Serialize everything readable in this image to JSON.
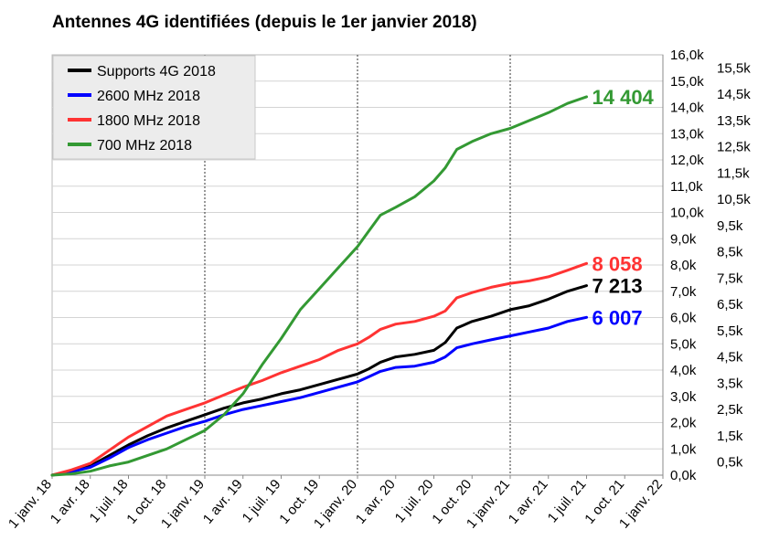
{
  "chart_data": {
    "type": "line",
    "title": "Antennes 4G identifiées (depuis le 1er janvier 2018)",
    "xlabel": "",
    "ylabel": "",
    "grid": "vertical dotted lines, horizontal grid",
    "legend_position": "top-left",
    "x_tick_labels": [
      "1 janv. 18",
      "1 avr. 18",
      "1 juil. 18",
      "1 oct. 18",
      "1 janv. 19",
      "1 avr. 19",
      "1 juil. 19",
      "1 oct. 19",
      "1 janv. 20",
      "1 avr. 20",
      "1 juil. 20",
      "1 oct. 20",
      "1 janv. 21",
      "1 avr. 21",
      "1 juil. 21",
      "1 oct. 21",
      "1 janv. 22"
    ],
    "x_range": [
      0,
      16
    ],
    "x_unit": "quarters since 1 janv. 18",
    "y_left_range": [
      0,
      16000
    ],
    "y_left_tick_labels": [
      "0,0k",
      "1,0k",
      "2,0k",
      "3,0k",
      "4,0k",
      "5,0k",
      "6,0k",
      "7,0k",
      "8,0k",
      "9,0k",
      "10,0k",
      "11,0k",
      "12,0k",
      "13,0k",
      "14,0k",
      "15,0k",
      "16,0k"
    ],
    "y_right_tick_labels": [
      "0,5k",
      "1,5k",
      "2,5k",
      "3,5k",
      "4,5k",
      "5,5k",
      "6,5k",
      "7,5k",
      "8,5k",
      "9,5k",
      "10,5k",
      "11,5k",
      "12,5k",
      "13,5k",
      "14,5k",
      "15,5k"
    ],
    "series": [
      {
        "name": "Supports 4G 2018",
        "color": "#000000",
        "end_label": "7 213",
        "x": [
          0,
          0.5,
          1,
          1.5,
          2,
          2.5,
          3,
          3.5,
          4,
          4.5,
          5,
          5.5,
          6,
          6.5,
          7,
          7.5,
          8,
          8.3,
          8.6,
          9,
          9.5,
          10,
          10.3,
          10.6,
          11,
          11.5,
          12,
          12.5,
          13,
          13.5,
          14
        ],
        "y": [
          0,
          150,
          350,
          750,
          1150,
          1500,
          1800,
          2050,
          2300,
          2550,
          2750,
          2900,
          3100,
          3250,
          3450,
          3650,
          3850,
          4050,
          4300,
          4500,
          4600,
          4750,
          5050,
          5600,
          5850,
          6050,
          6300,
          6450,
          6700,
          7000,
          7213
        ]
      },
      {
        "name": "2600 MHz 2018",
        "color": "#0000ff",
        "end_label": "6 007",
        "x": [
          0,
          0.5,
          1,
          1.5,
          2,
          2.5,
          3,
          3.5,
          4,
          4.5,
          5,
          5.5,
          6,
          6.5,
          7,
          7.5,
          8,
          8.3,
          8.6,
          9,
          9.5,
          10,
          10.3,
          10.6,
          11,
          11.5,
          12,
          12.5,
          13,
          13.5,
          14
        ],
        "y": [
          0,
          130,
          300,
          650,
          1050,
          1350,
          1600,
          1850,
          2050,
          2300,
          2500,
          2650,
          2800,
          2950,
          3150,
          3350,
          3550,
          3750,
          3950,
          4100,
          4150,
          4300,
          4500,
          4850,
          5000,
          5150,
          5300,
          5450,
          5600,
          5850,
          6007
        ]
      },
      {
        "name": "1800 MHz 2018",
        "color": "#ff3333",
        "end_label": "8 058",
        "x": [
          0,
          0.5,
          1,
          1.5,
          2,
          2.5,
          3,
          3.5,
          4,
          4.5,
          5,
          5.5,
          6,
          6.5,
          7,
          7.5,
          8,
          8.3,
          8.6,
          9,
          9.5,
          10,
          10.3,
          10.6,
          11,
          11.5,
          12,
          12.5,
          13,
          13.5,
          14
        ],
        "y": [
          0,
          200,
          450,
          950,
          1450,
          1850,
          2250,
          2500,
          2750,
          3050,
          3350,
          3600,
          3900,
          4150,
          4400,
          4750,
          5000,
          5250,
          5550,
          5750,
          5850,
          6050,
          6250,
          6750,
          6950,
          7150,
          7300,
          7400,
          7550,
          7800,
          8058
        ]
      },
      {
        "name": "700 MHz 2018",
        "color": "#339933",
        "end_label": "14 404",
        "x": [
          0,
          0.5,
          1,
          1.5,
          2,
          2.5,
          3,
          3.5,
          4,
          4.5,
          5,
          5.5,
          6,
          6.5,
          7,
          7.5,
          8,
          8.3,
          8.6,
          9,
          9.5,
          10,
          10.3,
          10.6,
          11,
          11.5,
          12,
          12.5,
          13,
          13.5,
          14
        ],
        "y": [
          0,
          50,
          150,
          350,
          500,
          750,
          1000,
          1350,
          1700,
          2300,
          3100,
          4200,
          5200,
          6300,
          7100,
          7900,
          8700,
          9300,
          9900,
          10200,
          10600,
          11200,
          11700,
          12400,
          12700,
          13000,
          13200,
          13500,
          13800,
          14150,
          14404
        ]
      }
    ]
  }
}
